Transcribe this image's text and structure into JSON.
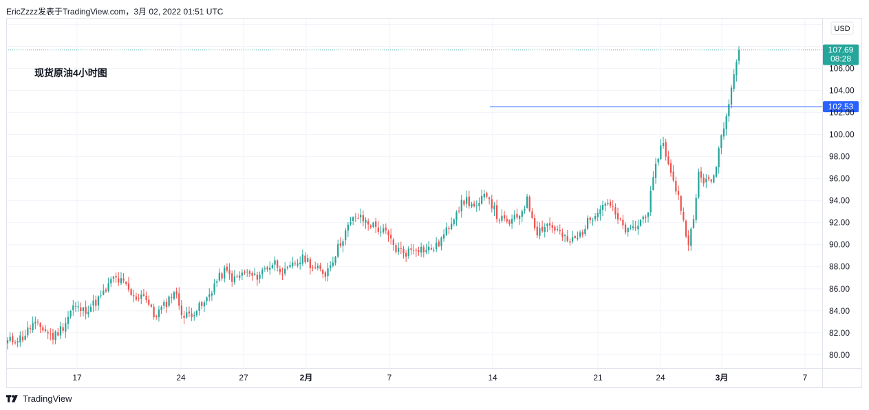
{
  "header": {
    "publisher": "EricZzzz发表于TradingView.com",
    "separator": "，",
    "timestamp": "3月 02, 2022 01:51 UTC"
  },
  "footer": {
    "brand": "TradingView",
    "logo_icon": "tradingview-logo-icon"
  },
  "colors": {
    "up": "#26a69a",
    "down": "#ef5350",
    "grid": "#f0f3fa",
    "axis_text": "#131722",
    "current_price_bg": "#26a69a",
    "horizontal_line": "#2962ff",
    "last_price_line": "#26a69a"
  },
  "chart_data": {
    "type": "candlestick",
    "title": "现货原油4小时图",
    "currency_label": "USD",
    "ylim": [
      78.8,
      110.6
    ],
    "y_ticks": [
      80,
      82,
      84,
      86,
      88,
      90,
      92,
      94,
      96,
      98,
      100,
      102,
      104,
      106
    ],
    "y_tick_labels": [
      "80.00",
      "82.00",
      "84.00",
      "86.00",
      "88.00",
      "90.00",
      "92.00",
      "94.00",
      "96.00",
      "98.00",
      "100.00",
      "102.00",
      "104.00",
      "106.00"
    ],
    "x_labels": [
      {
        "text": "17",
        "bold": false
      },
      {
        "text": "24",
        "bold": false
      },
      {
        "text": "27",
        "bold": false
      },
      {
        "text": "2月",
        "bold": true
      },
      {
        "text": "7",
        "bold": false
      },
      {
        "text": "14",
        "bold": false
      },
      {
        "text": "21",
        "bold": false
      },
      {
        "text": "24",
        "bold": false
      },
      {
        "text": "3月",
        "bold": true
      },
      {
        "text": "7",
        "bold": false
      }
    ],
    "current_price": {
      "price": 107.69,
      "label": "107.69",
      "countdown": "08:28"
    },
    "horizontal_line": {
      "price": 102.53,
      "label": "102.53"
    },
    "waypoints": [
      [
        0,
        81.2
      ],
      [
        6,
        81.6
      ],
      [
        10,
        82.8
      ],
      [
        14,
        82.4
      ],
      [
        18,
        81.6
      ],
      [
        22,
        82.6
      ],
      [
        26,
        84.4
      ],
      [
        30,
        84.0
      ],
      [
        34,
        84.6
      ],
      [
        38,
        85.5
      ],
      [
        42,
        87.0
      ],
      [
        46,
        86.5
      ],
      [
        50,
        85.1
      ],
      [
        54,
        85.6
      ],
      [
        58,
        83.5
      ],
      [
        62,
        84.4
      ],
      [
        66,
        85.8
      ],
      [
        70,
        83.4
      ],
      [
        74,
        84.0
      ],
      [
        78,
        84.6
      ],
      [
        82,
        86.4
      ],
      [
        86,
        87.6
      ],
      [
        90,
        86.8
      ],
      [
        94,
        87.5
      ],
      [
        98,
        87.0
      ],
      [
        102,
        87.8
      ],
      [
        106,
        88.4
      ],
      [
        110,
        87.4
      ],
      [
        114,
        88.3
      ],
      [
        118,
        88.8
      ],
      [
        122,
        87.8
      ],
      [
        126,
        87.4
      ],
      [
        130,
        89.2
      ],
      [
        134,
        91.2
      ],
      [
        138,
        92.6
      ],
      [
        142,
        92.1
      ],
      [
        146,
        91.6
      ],
      [
        150,
        91.0
      ],
      [
        154,
        89.6
      ],
      [
        158,
        89.3
      ],
      [
        162,
        89.8
      ],
      [
        166,
        89.5
      ],
      [
        170,
        89.8
      ],
      [
        174,
        91.2
      ],
      [
        178,
        93.2
      ],
      [
        182,
        94.1
      ],
      [
        186,
        93.2
      ],
      [
        190,
        94.8
      ],
      [
        194,
        92.6
      ],
      [
        198,
        91.9
      ],
      [
        202,
        92.4
      ],
      [
        206,
        94.0
      ],
      [
        210,
        91.2
      ],
      [
        214,
        91.9
      ],
      [
        218,
        91.3
      ],
      [
        222,
        90.2
      ],
      [
        226,
        90.6
      ],
      [
        230,
        92.0
      ],
      [
        234,
        93.3
      ],
      [
        238,
        94.0
      ],
      [
        242,
        92.2
      ],
      [
        246,
        91.1
      ],
      [
        250,
        91.8
      ],
      [
        254,
        93.2
      ],
      [
        258,
        98.2
      ],
      [
        260,
        99.4
      ],
      [
        262,
        97.2
      ],
      [
        264,
        95.6
      ],
      [
        266,
        94.6
      ],
      [
        268,
        92.0
      ],
      [
        270,
        90.4
      ],
      [
        272,
        92.0
      ],
      [
        274,
        96.5
      ],
      [
        276,
        95.9
      ],
      [
        278,
        95.6
      ],
      [
        280,
        96.2
      ],
      [
        282,
        98.8
      ],
      [
        284,
        101.0
      ],
      [
        286,
        103.2
      ],
      [
        288,
        105.6
      ],
      [
        290,
        107.69
      ]
    ]
  }
}
